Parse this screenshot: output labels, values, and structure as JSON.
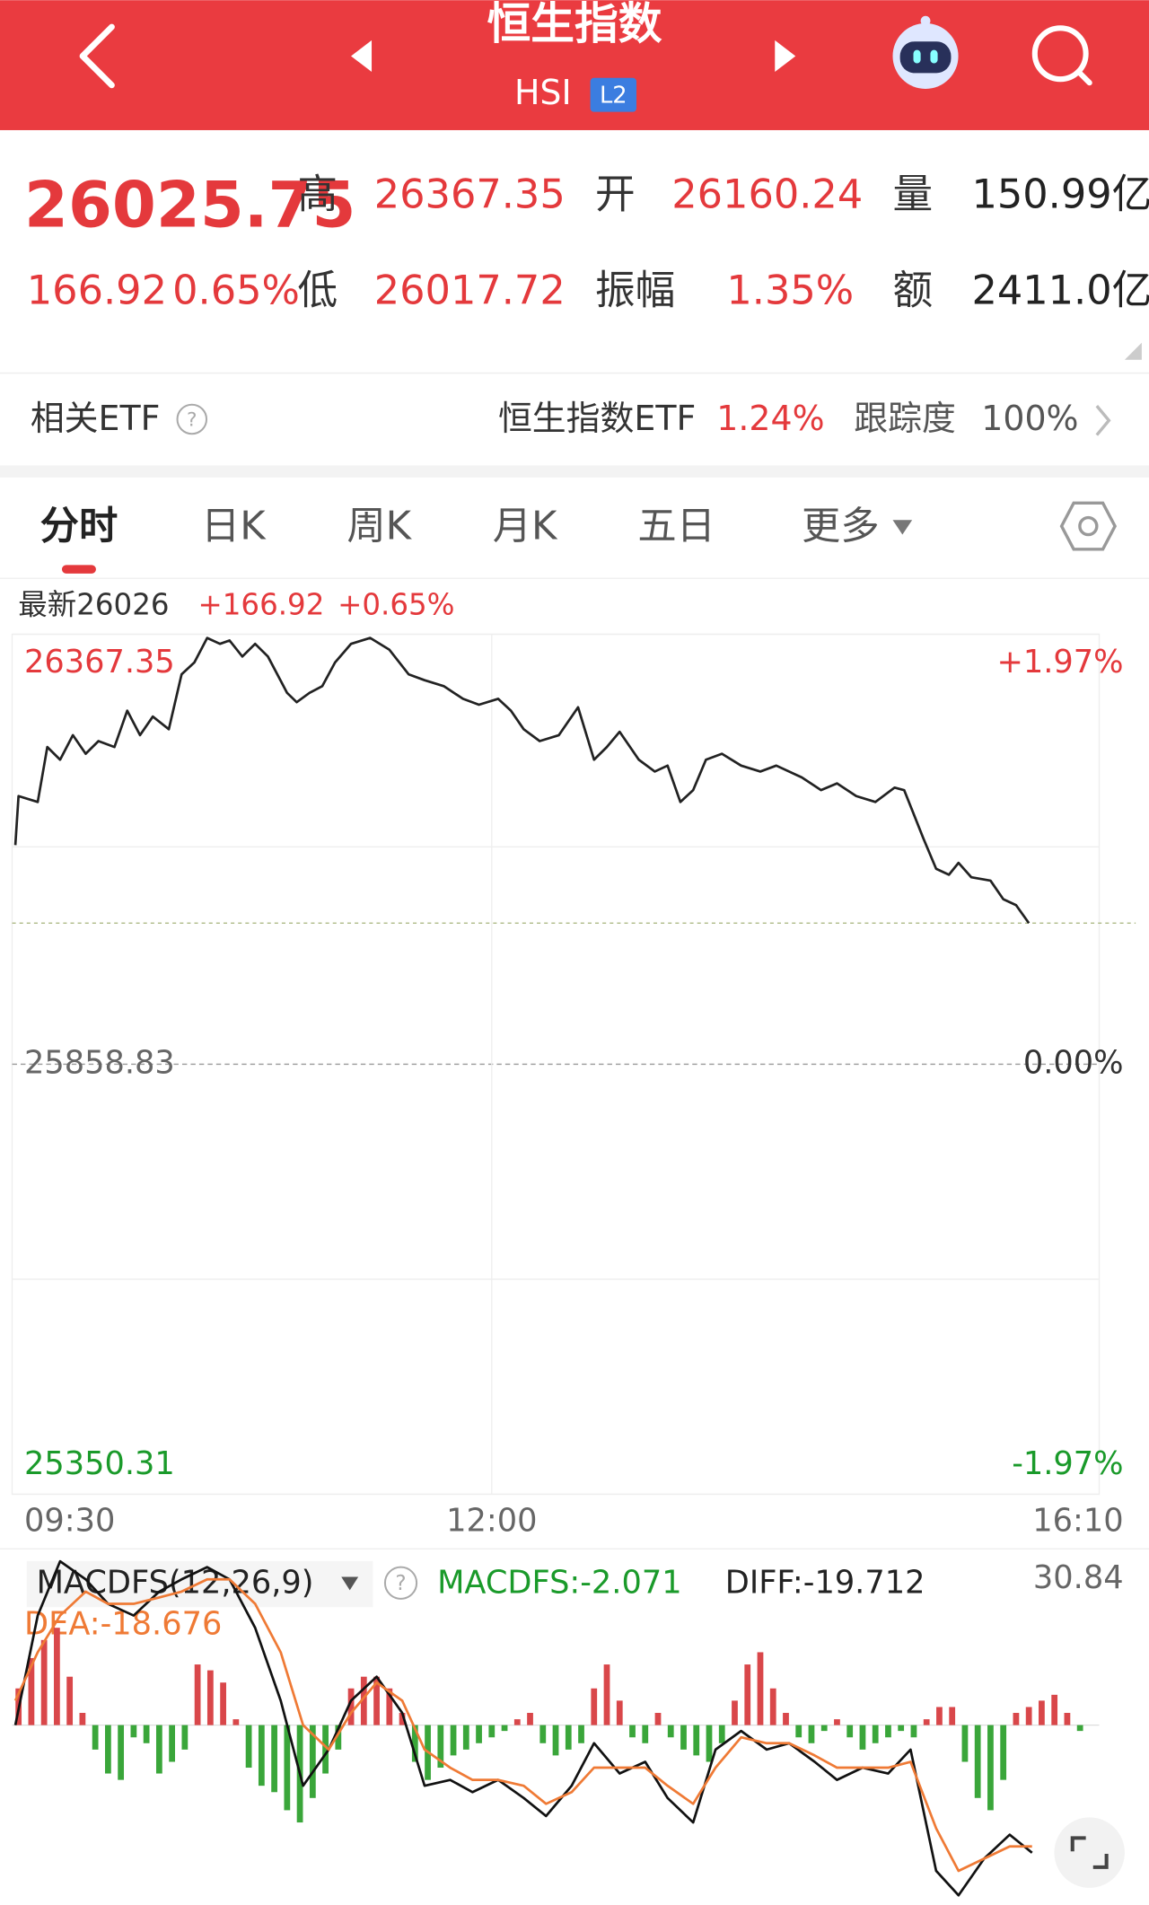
{
  "header": {
    "title": "恒生指数",
    "code": "HSI",
    "badge": "L2"
  },
  "quote": {
    "price": "26025.75",
    "change": "166.92",
    "change_pct": "0.65%",
    "high_label": "高",
    "high": "26367.35",
    "open_label": "开",
    "open": "26160.24",
    "volume_label": "量",
    "volume": "150.99亿",
    "low_label": "低",
    "low": "26017.72",
    "amplitude_label": "振幅",
    "amplitude": "1.35%",
    "turnover_label": "额",
    "turnover": "2411.0亿"
  },
  "etf": {
    "label": "相关ETF",
    "name": "恒生指数ETF",
    "change": "1.24%",
    "tracking_label": "跟踪度",
    "tracking": "100%"
  },
  "tabs": [
    "分时",
    "日K",
    "周K",
    "月K",
    "五日",
    "更多"
  ],
  "chart_data": [
    {
      "type": "line",
      "info": {
        "latest_label": "最新",
        "latest": "26026",
        "change": "+166.92",
        "change_pct": "+0.65%"
      },
      "x": [
        1,
        2,
        8,
        11,
        15,
        19,
        23,
        27,
        32,
        36,
        40,
        44,
        49,
        53,
        57,
        61,
        65,
        68,
        72,
        76,
        80,
        86,
        89,
        93,
        97,
        101,
        106,
        112,
        118,
        124,
        129,
        135,
        141,
        146,
        152,
        156,
        160,
        165,
        171,
        177,
        182,
        186,
        190,
        196,
        201,
        205,
        209,
        213,
        217,
        222,
        228,
        234,
        239,
        247,
        253,
        258,
        264,
        270,
        276,
        279,
        285,
        289,
        293,
        296,
        300,
        306,
        310,
        314,
        318
      ],
      "series": [
        {
          "color": "#222222",
          "values": [
            26118,
            26176,
            26169,
            26234,
            26219,
            26248,
            26226,
            26241,
            26234,
            26277,
            26248,
            26270,
            26255,
            26320,
            26334,
            26363,
            26356,
            26360,
            26341,
            26356,
            26341,
            26298,
            26287,
            26298,
            26306,
            26334,
            26356,
            26363,
            26349,
            26320,
            26313,
            26306,
            26291,
            26284,
            26291,
            26277,
            26255,
            26241,
            26248,
            26281,
            26219,
            26234,
            26252,
            26219,
            26205,
            26212,
            26169,
            26183,
            26219,
            26226,
            26212,
            26205,
            26212,
            26198,
            26183,
            26191,
            26176,
            26169,
            26186,
            26183,
            26126,
            26090,
            26083,
            26097,
            26080,
            26076,
            26054,
            26047,
            26025.75
          ]
        }
      ],
      "xlim": [
        0,
        340
      ],
      "xticks": [
        {
          "value": 0,
          "label": "09:30"
        },
        {
          "value": 150,
          "label": "12:00"
        },
        {
          "value": 340,
          "label": "16:10"
        }
      ],
      "ylim": [
        25350.31,
        26367.35
      ],
      "yticks": [
        26367.35,
        25858.83,
        25350.31
      ],
      "y2lim": [
        -1.97,
        1.97
      ],
      "y2ticks": [
        {
          "value": 1.97,
          "label": "+1.97%"
        },
        {
          "value": 0,
          "label": "0.00%"
        },
        {
          "value": -1.97,
          "label": "-1.97%"
        }
      ],
      "reference_line": 26025.75,
      "up_color": "#e4393c",
      "down_color": "#1a9a2a"
    },
    {
      "type": "macd",
      "indicator": "MACDFS(12,26,9)",
      "macdfs": "MACDFS:-2.071",
      "diff": "DIFF:-19.712",
      "dea": "DEA:-18.676",
      "xlim": [
        0,
        340
      ],
      "ylim": [
        -33.1,
        30.84
      ],
      "yticks": [
        30.84
      ],
      "histogram": {
        "colors": [
          "#d9474a",
          "#3aa63a"
        ],
        "x": [
          2,
          6,
          10,
          14,
          18,
          22,
          26,
          30,
          34,
          38,
          42,
          46,
          50,
          54,
          58,
          62,
          66,
          70,
          74,
          78,
          82,
          86,
          90,
          94,
          98,
          102,
          106,
          110,
          114,
          118,
          122,
          126,
          130,
          134,
          138,
          142,
          146,
          150,
          154,
          158,
          162,
          166,
          170,
          174,
          178,
          182,
          186,
          190,
          194,
          198,
          202,
          206,
          210,
          214,
          218,
          222,
          226,
          230,
          234,
          238,
          242,
          246,
          250,
          254,
          258,
          262,
          266,
          270,
          274,
          278,
          282,
          286,
          290,
          294,
          298,
          302,
          306,
          310,
          314,
          318,
          322,
          326,
          330,
          334
        ],
        "values": [
          6.9,
          12.6,
          16.0,
          18.3,
          9.1,
          2.3,
          -4.6,
          -9.1,
          -10.3,
          -2.3,
          -3.4,
          -9.1,
          -6.9,
          -4.6,
          11.4,
          10.3,
          8.0,
          1.1,
          -8.0,
          -11.4,
          -12.6,
          -16.0,
          -18.3,
          -13.7,
          -9.1,
          -4.6,
          6.9,
          9.1,
          9.1,
          6.9,
          2.3,
          -6.9,
          -10.3,
          -8.0,
          -5.7,
          -4.6,
          -3.4,
          -2.3,
          -1.1,
          1.1,
          2.3,
          -3.4,
          -5.7,
          -4.6,
          -3.4,
          6.9,
          11.4,
          4.6,
          -2.3,
          -3.4,
          2.3,
          -2.3,
          -4.6,
          -5.7,
          -6.9,
          -3.4,
          4.6,
          11.4,
          13.7,
          6.9,
          2.3,
          -2.3,
          -3.4,
          -1.1,
          1.1,
          -2.3,
          -4.6,
          -3.4,
          -2.3,
          -1.1,
          -2.3,
          1.1,
          3.4,
          3.4,
          -6.9,
          -13.7,
          -16.0,
          -10.3,
          2.3,
          3.4,
          4.6,
          5.7,
          2.3,
          -1.1
        ]
      },
      "lines": [
        {
          "color": "#111111",
          "x": [
            1,
            8,
            15,
            23,
            30,
            38,
            46,
            53,
            61,
            68,
            76,
            84,
            91,
            99,
            106,
            114,
            122,
            129,
            137,
            144,
            152,
            160,
            167,
            175,
            182,
            190,
            198,
            205,
            213,
            220,
            228,
            236,
            243,
            251,
            258,
            266,
            274,
            281,
            289,
            296,
            304,
            312,
            319
          ],
          "values": [
            0,
            20.6,
            30.8,
            27.4,
            22.8,
            20.6,
            25.1,
            27.4,
            29.7,
            27.4,
            18.3,
            4.6,
            -11.4,
            -4.6,
            4.6,
            9.1,
            2.3,
            -11.4,
            -10.3,
            -12.6,
            -10.3,
            -13.7,
            -17.1,
            -11.4,
            -3.4,
            -9.1,
            -6.9,
            -13.7,
            -18.3,
            -4.6,
            -1.1,
            -4.6,
            -3.4,
            -6.9,
            -10.3,
            -8.0,
            -9.1,
            -4.6,
            -27.4,
            -32.0,
            -25.1,
            -20.6,
            -24.0
          ]
        },
        {
          "color": "#ef7a35",
          "x": [
            1,
            8,
            15,
            23,
            30,
            38,
            46,
            53,
            61,
            68,
            76,
            84,
            91,
            99,
            106,
            114,
            122,
            129,
            137,
            144,
            152,
            160,
            167,
            175,
            182,
            190,
            198,
            205,
            213,
            220,
            228,
            236,
            243,
            251,
            258,
            266,
            274,
            281,
            289,
            296,
            304,
            312,
            319
          ],
          "values": [
            4.6,
            13.7,
            20.6,
            25.1,
            22.8,
            22.8,
            24.0,
            25.1,
            27.4,
            27.4,
            22.8,
            13.7,
            0,
            -4.6,
            2.3,
            8.0,
            4.6,
            -4.6,
            -8.0,
            -10.3,
            -10.3,
            -11.4,
            -14.8,
            -12.6,
            -8.0,
            -8.0,
            -8.0,
            -11.4,
            -14.8,
            -8.0,
            -2.3,
            -3.4,
            -3.4,
            -5.7,
            -8.0,
            -8.0,
            -8.0,
            -6.9,
            -19.4,
            -27.4,
            -25.1,
            -22.8,
            -22.8
          ]
        }
      ]
    }
  ]
}
